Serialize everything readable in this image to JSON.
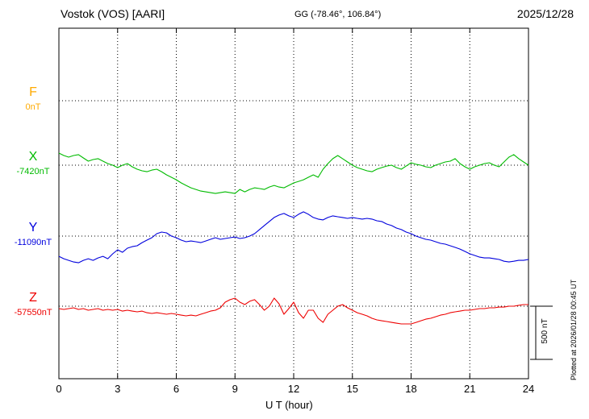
{
  "header": {
    "station_title": "Vostok (VOS)  [AARI]",
    "coordinates": "GG (-78.46°, 106.84°)",
    "date": "2025/12/28"
  },
  "channels": [
    {
      "letter": "F",
      "baseline_label": "0nT",
      "color": "#ffaa00"
    },
    {
      "letter": "X",
      "baseline_label": "-7420nT",
      "color": "#00bb00"
    },
    {
      "letter": "Y",
      "baseline_label": "-11090nT",
      "color": "#0000dd"
    },
    {
      "letter": "Z",
      "baseline_label": "-57550nT",
      "color": "#ee0000"
    }
  ],
  "xaxis": {
    "title": "U T (hour)"
  },
  "scale_bar": {
    "label": "500 nT"
  },
  "footer": {
    "plotted_at": "Plotted at 2026/01/28 00:45 UT"
  },
  "chart_data": {
    "type": "line",
    "title": "Vostok (VOS) [AARI] magnetogram 2025/12/28",
    "xlabel": "U T (hour)",
    "xlim": [
      0,
      24
    ],
    "x_ticks": [
      0,
      3,
      6,
      9,
      12,
      15,
      18,
      21,
      24
    ],
    "sample_interval_hours": 0.25,
    "scale_nT_per_div": 500,
    "values_unit": "nT offset from each channel baseline; baselines F=0nT, X=-7420nT, Y=-11090nT, Z=-57550nT",
    "grid": "dotted vertical lines every 3 h, dotted horizontal line at each channel baseline",
    "series": [
      {
        "name": "F",
        "baseline_nT": 0,
        "color": "#ffaa00",
        "values": []
      },
      {
        "name": "X",
        "baseline_nT": -7420,
        "color": "#00bb00",
        "values": [
          114,
          91,
          76,
          91,
          99,
          68,
          38,
          53,
          61,
          38,
          15,
          0,
          -23,
          0,
          15,
          -15,
          -38,
          -53,
          -61,
          -46,
          -38,
          -61,
          -91,
          -114,
          -137,
          -167,
          -190,
          -213,
          -228,
          -243,
          -251,
          -258,
          -266,
          -258,
          -251,
          -258,
          -266,
          -228,
          -251,
          -228,
          -213,
          -220,
          -228,
          -205,
          -190,
          -205,
          -213,
          -190,
          -167,
          -152,
          -137,
          -114,
          -91,
          -114,
          -38,
          15,
          61,
          91,
          61,
          30,
          0,
          -23,
          -38,
          -53,
          -61,
          -38,
          -23,
          -8,
          0,
          -23,
          -38,
          -8,
          23,
          8,
          0,
          -15,
          -23,
          0,
          15,
          30,
          38,
          61,
          15,
          -15,
          -38,
          -15,
          0,
          15,
          23,
          0,
          -15,
          30,
          76,
          99,
          61,
          30,
          0
        ]
      },
      {
        "name": "Y",
        "baseline_nT": -11090,
        "color": "#0000dd",
        "values": [
          -190,
          -213,
          -228,
          -243,
          -251,
          -228,
          -213,
          -228,
          -205,
          -190,
          -213,
          -167,
          -129,
          -152,
          -114,
          -99,
          -91,
          -61,
          -38,
          -15,
          23,
          38,
          30,
          0,
          -15,
          -38,
          -53,
          -46,
          -53,
          -61,
          -46,
          -30,
          -15,
          -30,
          -23,
          -15,
          -8,
          -23,
          -15,
          0,
          23,
          61,
          99,
          137,
          175,
          198,
          213,
          190,
          175,
          205,
          228,
          205,
          175,
          160,
          152,
          175,
          190,
          182,
          175,
          167,
          175,
          167,
          160,
          167,
          160,
          144,
          137,
          114,
          99,
          76,
          61,
          38,
          23,
          0,
          -15,
          -30,
          -38,
          -53,
          -68,
          -76,
          -91,
          -106,
          -122,
          -144,
          -167,
          -182,
          -198,
          -205,
          -205,
          -213,
          -220,
          -236,
          -243,
          -236,
          -228,
          -228,
          -220
        ]
      },
      {
        "name": "Z",
        "baseline_nT": -57550,
        "color": "#ee0000",
        "values": [
          -23,
          -30,
          -23,
          -15,
          -30,
          -23,
          -38,
          -30,
          -23,
          -38,
          -30,
          -38,
          -30,
          -46,
          -38,
          -46,
          -53,
          -46,
          -61,
          -68,
          -61,
          -68,
          -76,
          -68,
          -76,
          -84,
          -91,
          -84,
          -91,
          -76,
          -61,
          -46,
          -38,
          -15,
          38,
          61,
          76,
          38,
          15,
          46,
          61,
          15,
          -38,
          0,
          76,
          23,
          -76,
          -23,
          38,
          -61,
          -114,
          -38,
          -38,
          -114,
          -152,
          -76,
          -38,
          0,
          15,
          -15,
          -38,
          -61,
          -76,
          -91,
          -114,
          -129,
          -137,
          -144,
          -152,
          -160,
          -167,
          -167,
          -167,
          -152,
          -137,
          -122,
          -114,
          -99,
          -84,
          -76,
          -61,
          -53,
          -46,
          -38,
          -38,
          -30,
          -23,
          -23,
          -15,
          -15,
          -8,
          -8,
          0,
          0,
          8,
          15,
          15
        ]
      }
    ]
  }
}
